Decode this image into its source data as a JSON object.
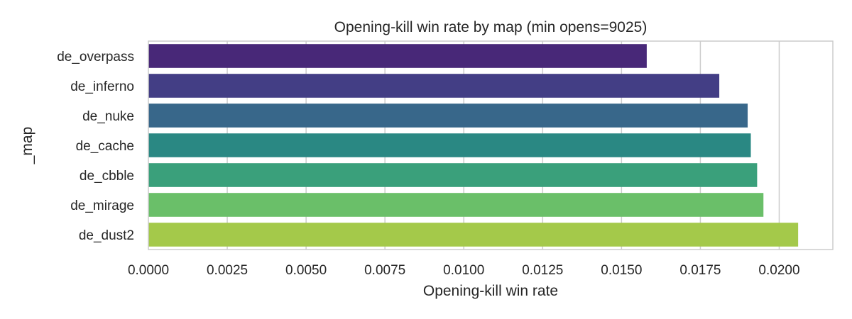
{
  "chart_data": {
    "type": "bar",
    "orientation": "horizontal",
    "title": "Opening-kill win rate by map (min opens=9025)",
    "xlabel": "Opening-kill win rate",
    "ylabel": "_map",
    "categories": [
      "de_overpass",
      "de_inferno",
      "de_nuke",
      "de_cache",
      "de_cbble",
      "de_mirage",
      "de_dust2"
    ],
    "values": [
      0.0158,
      0.0181,
      0.019,
      0.0191,
      0.0193,
      0.0195,
      0.0206
    ],
    "colors": [
      "#482878",
      "#433e85",
      "#38678a",
      "#2a8883",
      "#3aa07b",
      "#6abf69",
      "#a4c94a"
    ],
    "xlim": [
      0,
      0.0217
    ],
    "xticks": [
      "0.0000",
      "0.0025",
      "0.0050",
      "0.0075",
      "0.0100",
      "0.0125",
      "0.0150",
      "0.0175",
      "0.0200"
    ],
    "grid": true
  }
}
